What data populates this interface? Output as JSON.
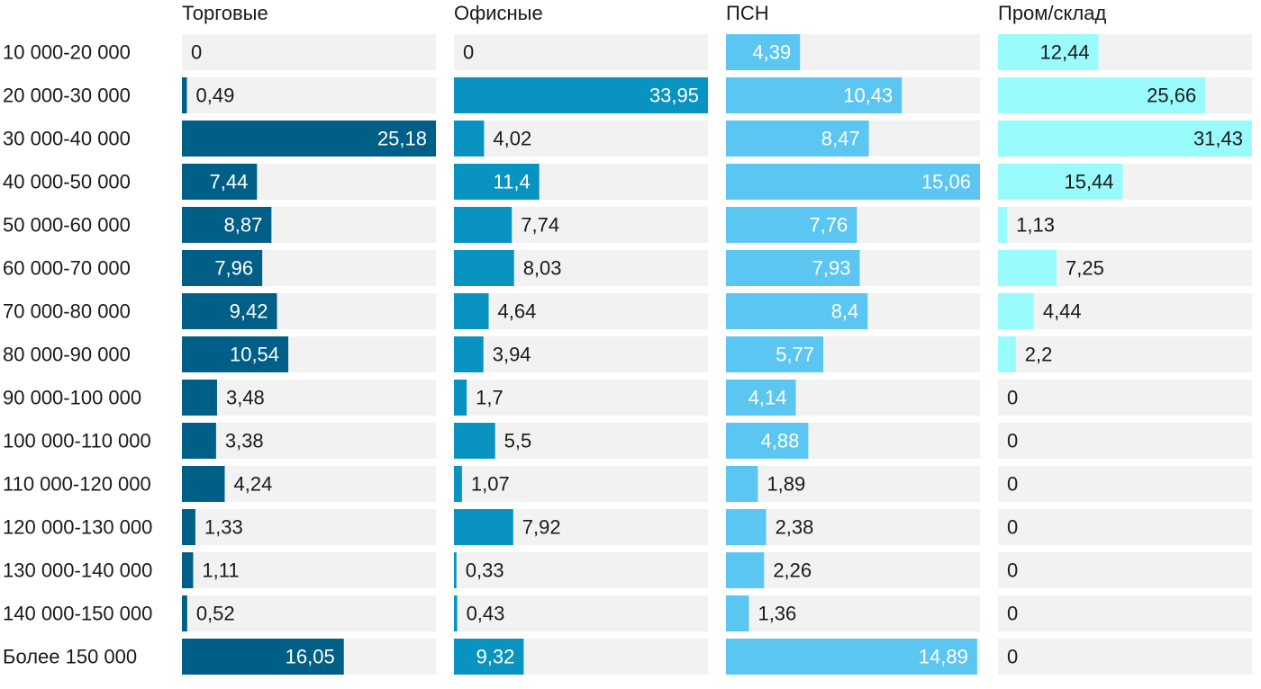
{
  "chart_data": {
    "type": "bar",
    "orientation": "horizontal",
    "layout": "small-multiples",
    "title": "",
    "categories": [
      "10 000-20 000",
      "20 000-30 000",
      "30 000-40 000",
      "40 000-50 000",
      "50 000-60 000",
      "60 000-70 000",
      "70 000-80 000",
      "80 000-90 000",
      "90 000-100 000",
      "100 000-110 000",
      "110 000-120 000",
      "120 000-130 000",
      "130 000-140 000",
      "140 000-150 000",
      "Более 150 000"
    ],
    "series": [
      {
        "name": "Торговые",
        "color": "#005f86",
        "values": [
          0,
          0.49,
          25.18,
          7.44,
          8.87,
          7.96,
          9.42,
          10.54,
          3.48,
          3.38,
          4.24,
          1.33,
          1.11,
          0.52,
          16.05
        ],
        "labels": [
          "0",
          "0,49",
          "25,18",
          "7,44",
          "8,87",
          "7,96",
          "9,42",
          "10,54",
          "3,48",
          "3,38",
          "4,24",
          "1,33",
          "1,11",
          "0,52",
          "16,05"
        ]
      },
      {
        "name": "Офисные",
        "color": "#0993c0",
        "values": [
          0,
          33.95,
          4.02,
          11.4,
          7.74,
          8.03,
          4.64,
          3.94,
          1.7,
          5.5,
          1.07,
          7.92,
          0.33,
          0.43,
          9.32
        ],
        "labels": [
          "0",
          "33,95",
          "4,02",
          "11,4",
          "7,74",
          "8,03",
          "4,64",
          "3,94",
          "1,7",
          "5,5",
          "1,07",
          "7,92",
          "0,33",
          "0,43",
          "9,32"
        ]
      },
      {
        "name": "ПСН",
        "color": "#5bc6f2",
        "values": [
          4.39,
          10.43,
          8.47,
          15.06,
          7.76,
          7.93,
          8.4,
          5.77,
          4.14,
          4.88,
          1.89,
          2.38,
          2.26,
          1.36,
          14.89
        ],
        "labels": [
          "4,39",
          "10,43",
          "8,47",
          "15,06",
          "7,76",
          "7,93",
          "8,4",
          "5,77",
          "4,14",
          "4,88",
          "1,89",
          "2,38",
          "2,26",
          "1,36",
          "14,89"
        ]
      },
      {
        "name": "Пром/склад",
        "color": "#99fbfb",
        "values": [
          12.44,
          25.66,
          31.43,
          15.44,
          1.13,
          7.25,
          4.44,
          2.2,
          0,
          0,
          0,
          0,
          0,
          0,
          0
        ],
        "labels": [
          "12,44",
          "25,66",
          "31,43",
          "15,44",
          "1,13",
          "7,25",
          "4,44",
          "2,2",
          "0",
          "0",
          "0",
          "0",
          "0",
          "0",
          "0"
        ]
      }
    ],
    "track_color": "#f2f2f2",
    "grid": false,
    "legend": "none"
  }
}
